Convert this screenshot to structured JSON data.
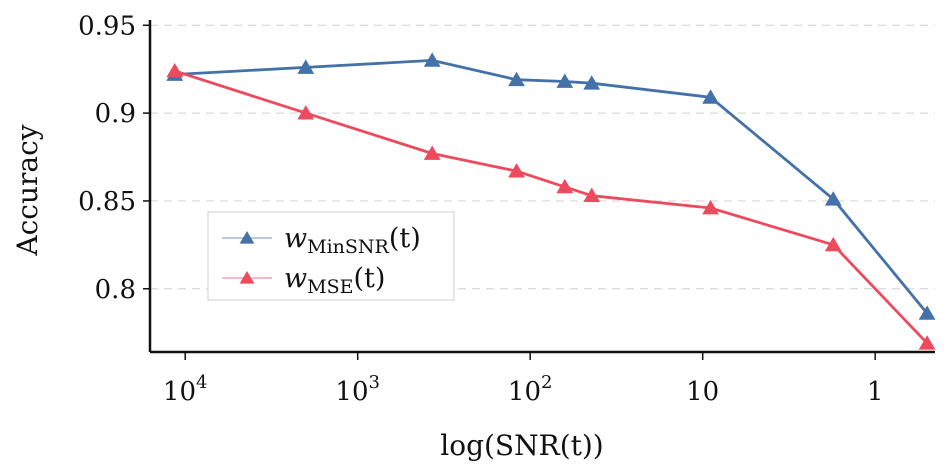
{
  "chart_data": {
    "type": "line",
    "xlabel": "log(SNR(t))",
    "ylabel": "Accuracy",
    "x_scale": "log",
    "x_reversed": true,
    "xlim": [
      16000,
      0.45
    ],
    "ylim": [
      0.764,
      0.953
    ],
    "grid": "horizontal dashed",
    "legend_position": "lower-left",
    "x_ticks": [
      {
        "value": 10000,
        "base": "10",
        "exp": "4"
      },
      {
        "value": 1000,
        "base": "10",
        "exp": "3"
      },
      {
        "value": 100,
        "base": "10",
        "exp": "2"
      },
      {
        "value": 10,
        "base": "10",
        "exp": ""
      },
      {
        "value": 1,
        "base": "1",
        "exp": ""
      }
    ],
    "y_ticks": [
      {
        "value": 0.95,
        "label": "0.95"
      },
      {
        "value": 0.9,
        "label": "0.9"
      },
      {
        "value": 0.85,
        "label": "0.85"
      },
      {
        "value": 0.8,
        "label": "0.8"
      }
    ],
    "series": [
      {
        "legend_main": "w",
        "legend_sub": "MinSNR",
        "legend_tail": "(t)",
        "color": "#4472a8",
        "points": [
          {
            "x": 11500,
            "y": 0.922
          },
          {
            "x": 2000,
            "y": 0.926
          },
          {
            "x": 370,
            "y": 0.93
          },
          {
            "x": 120,
            "y": 0.919
          },
          {
            "x": 63,
            "y": 0.918
          },
          {
            "x": 44,
            "y": 0.917
          },
          {
            "x": 9,
            "y": 0.909
          },
          {
            "x": 1.75,
            "y": 0.851
          },
          {
            "x": 0.5,
            "y": 0.786
          }
        ]
      },
      {
        "legend_main": "w",
        "legend_sub": "MSE",
        "legend_tail": "(t)",
        "color": "#ed4a5e",
        "points": [
          {
            "x": 11500,
            "y": 0.924
          },
          {
            "x": 2000,
            "y": 0.9
          },
          {
            "x": 370,
            "y": 0.877
          },
          {
            "x": 120,
            "y": 0.867
          },
          {
            "x": 63,
            "y": 0.858
          },
          {
            "x": 44,
            "y": 0.853
          },
          {
            "x": 9,
            "y": 0.846
          },
          {
            "x": 1.75,
            "y": 0.825
          },
          {
            "x": 0.5,
            "y": 0.769
          }
        ]
      }
    ]
  }
}
